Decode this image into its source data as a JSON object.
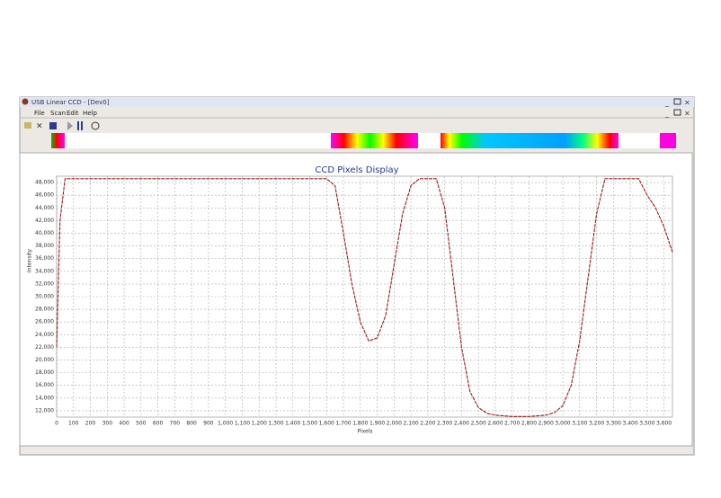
{
  "window": {
    "title": "USB Linear CCD - [Dev0]",
    "menu": [
      "File",
      "Scan",
      "Edit",
      "Help"
    ]
  },
  "chart_data": {
    "type": "line",
    "title": "CCD Pixels Display",
    "x_label": "Pixels",
    "y_label": "Intensity",
    "color": "#a01818",
    "grid": true,
    "x": [
      0,
      20,
      50,
      100,
      500,
      1000,
      1500,
      1600,
      1650,
      1700,
      1750,
      1800,
      1850,
      1900,
      1950,
      2000,
      2050,
      2100,
      2150,
      2250,
      2300,
      2350,
      2400,
      2450,
      2500,
      2550,
      2600,
      2700,
      2800,
      2900,
      2950,
      3000,
      3050,
      3100,
      3150,
      3200,
      3250,
      3450,
      3500,
      3550,
      3600,
      3650
    ],
    "values": [
      22000,
      42000,
      48600,
      48600,
      48600,
      48600,
      48600,
      48600,
      47500,
      40000,
      32000,
      26000,
      23000,
      23500,
      27000,
      35000,
      43000,
      47500,
      48600,
      48600,
      44000,
      33000,
      22000,
      15000,
      12500,
      11600,
      11300,
      11100,
      11100,
      11300,
      11700,
      12800,
      16000,
      23000,
      33000,
      43000,
      48600,
      48600,
      46000,
      44000,
      41000,
      37000
    ],
    "xlim": [
      0,
      3650
    ],
    "ylim": [
      11000,
      49000
    ],
    "xticks": [
      0,
      100,
      200,
      300,
      400,
      500,
      600,
      700,
      800,
      900,
      {
        "value": 1000,
        "label": "1,000"
      },
      {
        "value": 1100,
        "label": "1,100"
      },
      {
        "value": 1200,
        "label": "1,200"
      },
      {
        "value": 1300,
        "label": "1,300"
      },
      {
        "value": 1400,
        "label": "1,400"
      },
      {
        "value": 1500,
        "label": "1,500"
      },
      {
        "value": 1600,
        "label": "1,600"
      },
      {
        "value": 1700,
        "label": "1,700"
      },
      {
        "value": 1800,
        "label": "1,800"
      },
      {
        "value": 1900,
        "label": "1,900"
      },
      {
        "value": 2000,
        "label": "2,000"
      },
      {
        "value": 2100,
        "label": "2,100"
      },
      {
        "value": 2200,
        "label": "2,200"
      },
      {
        "value": 2300,
        "label": "2,300"
      },
      {
        "value": 2400,
        "label": "2,400"
      },
      {
        "value": 2500,
        "label": "2,500"
      },
      {
        "value": 2600,
        "label": "2,600"
      },
      {
        "value": 2700,
        "label": "2,700"
      },
      {
        "value": 2800,
        "label": "2,800"
      },
      {
        "value": 2900,
        "label": "2,900"
      },
      {
        "value": 3000,
        "label": "3,000"
      },
      {
        "value": 3100,
        "label": "3,100"
      },
      {
        "value": 3200,
        "label": "3,200"
      },
      {
        "value": 3300,
        "label": "3,300"
      },
      {
        "value": 3400,
        "label": "3,400"
      },
      {
        "value": 3500,
        "label": "3,500"
      },
      {
        "value": 3600,
        "label": "3,600"
      }
    ],
    "yticks": [
      {
        "value": 12000,
        "label": "12,000"
      },
      {
        "value": 14000,
        "label": "14,000"
      },
      {
        "value": 16000,
        "label": "16,000"
      },
      {
        "value": 18000,
        "label": "18,000"
      },
      {
        "value": 20000,
        "label": "20,000"
      },
      {
        "value": 22000,
        "label": "22,000"
      },
      {
        "value": 24000,
        "label": "24,000"
      },
      {
        "value": 26000,
        "label": "26,000"
      },
      {
        "value": 28000,
        "label": "28,000"
      },
      {
        "value": 30000,
        "label": "30,000"
      },
      {
        "value": 32000,
        "label": "32,000"
      },
      {
        "value": 34000,
        "label": "34,000"
      },
      {
        "value": 36000,
        "label": "36,000"
      },
      {
        "value": 38000,
        "label": "38,000"
      },
      {
        "value": 40000,
        "label": "40,000"
      },
      {
        "value": 42000,
        "label": "42,000"
      },
      {
        "value": 44000,
        "label": "44,000"
      },
      {
        "value": 46000,
        "label": "46,000"
      },
      {
        "value": 48000,
        "label": "48,000"
      }
    ]
  }
}
